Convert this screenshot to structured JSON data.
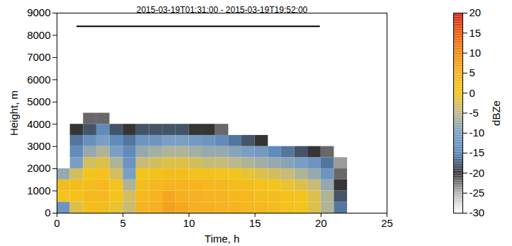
{
  "chart_data": {
    "type": "heatmap",
    "title": "2015-03-19T01:31:00 - 2015-03-19T19:52:00",
    "x_label": "Time, h",
    "y_label": "Height, m",
    "xlim": [
      0,
      25
    ],
    "xticks": [
      0,
      5,
      10,
      15,
      20,
      25
    ],
    "ylim": [
      0,
      9000
    ],
    "yticks": [
      0,
      1000,
      2000,
      3000,
      4000,
      5000,
      6000,
      7000,
      8000,
      9000
    ],
    "time_edges": [
      0,
      1,
      2,
      3,
      4,
      5,
      6,
      7,
      8,
      9,
      10,
      11,
      12,
      13,
      14,
      15,
      16,
      17,
      18,
      19,
      20,
      21,
      22
    ],
    "height_edges": [
      0,
      500,
      1000,
      1500,
      2000,
      2500,
      3000,
      3500,
      4000,
      4500
    ],
    "cells": [
      [
        -12,
        -2,
        2,
        2,
        -1,
        -4,
        4,
        5,
        7,
        6,
        5,
        5,
        4,
        4,
        3,
        3,
        2,
        1,
        0,
        -2,
        -6,
        -16
      ],
      [
        0,
        1,
        3,
        3,
        0,
        -3,
        3,
        4,
        6,
        5,
        5,
        4,
        4,
        3,
        3,
        2,
        2,
        1,
        0,
        -2,
        -6,
        -18
      ],
      [
        2,
        2,
        2,
        3,
        0,
        -6,
        2,
        3,
        4,
        4,
        4,
        3,
        3,
        2,
        2,
        1,
        0,
        -1,
        -2,
        -4,
        -8,
        -20
      ],
      [
        -8,
        -3,
        0,
        1,
        -3,
        -10,
        0,
        1,
        2,
        2,
        1,
        1,
        0,
        0,
        -1,
        -2,
        -3,
        -4,
        -6,
        -8,
        -12,
        -22
      ],
      [
        null,
        -10,
        -3,
        -2,
        -6,
        -12,
        -4,
        -3,
        -2,
        -2,
        -3,
        -4,
        -4,
        -5,
        -6,
        -7,
        -8,
        -9,
        -10,
        -12,
        -16,
        -24
      ],
      [
        null,
        -14,
        -8,
        -6,
        -10,
        -14,
        -8,
        -7,
        -6,
        -6,
        -7,
        -8,
        -8,
        -9,
        -10,
        -11,
        -14,
        -16,
        -18,
        -20,
        -22,
        null
      ],
      [
        null,
        -16,
        -13,
        -10,
        -14,
        -16,
        -12,
        -12,
        -10,
        -10,
        -11,
        -12,
        -14,
        -16,
        -18,
        -20,
        null,
        null,
        null,
        null,
        null,
        null
      ],
      [
        null,
        -20,
        -18,
        -14,
        -18,
        -20,
        -18,
        -18,
        -18,
        -18,
        -20,
        -20,
        -22,
        null,
        null,
        null,
        null,
        null,
        null,
        null,
        null,
        null
      ],
      [
        null,
        null,
        -22,
        -22,
        null,
        null,
        null,
        null,
        null,
        null,
        null,
        null,
        null,
        null,
        null,
        null,
        null,
        null,
        null,
        null,
        null,
        null
      ]
    ],
    "segment": {
      "x": [
        1.52,
        19.87
      ],
      "y": 8400
    },
    "colorbar": {
      "label": "dBZe",
      "range": [
        -30,
        20
      ],
      "ticks": [
        -30,
        -25,
        -20,
        -15,
        -10,
        -5,
        0,
        5,
        10,
        15,
        20
      ]
    }
  }
}
